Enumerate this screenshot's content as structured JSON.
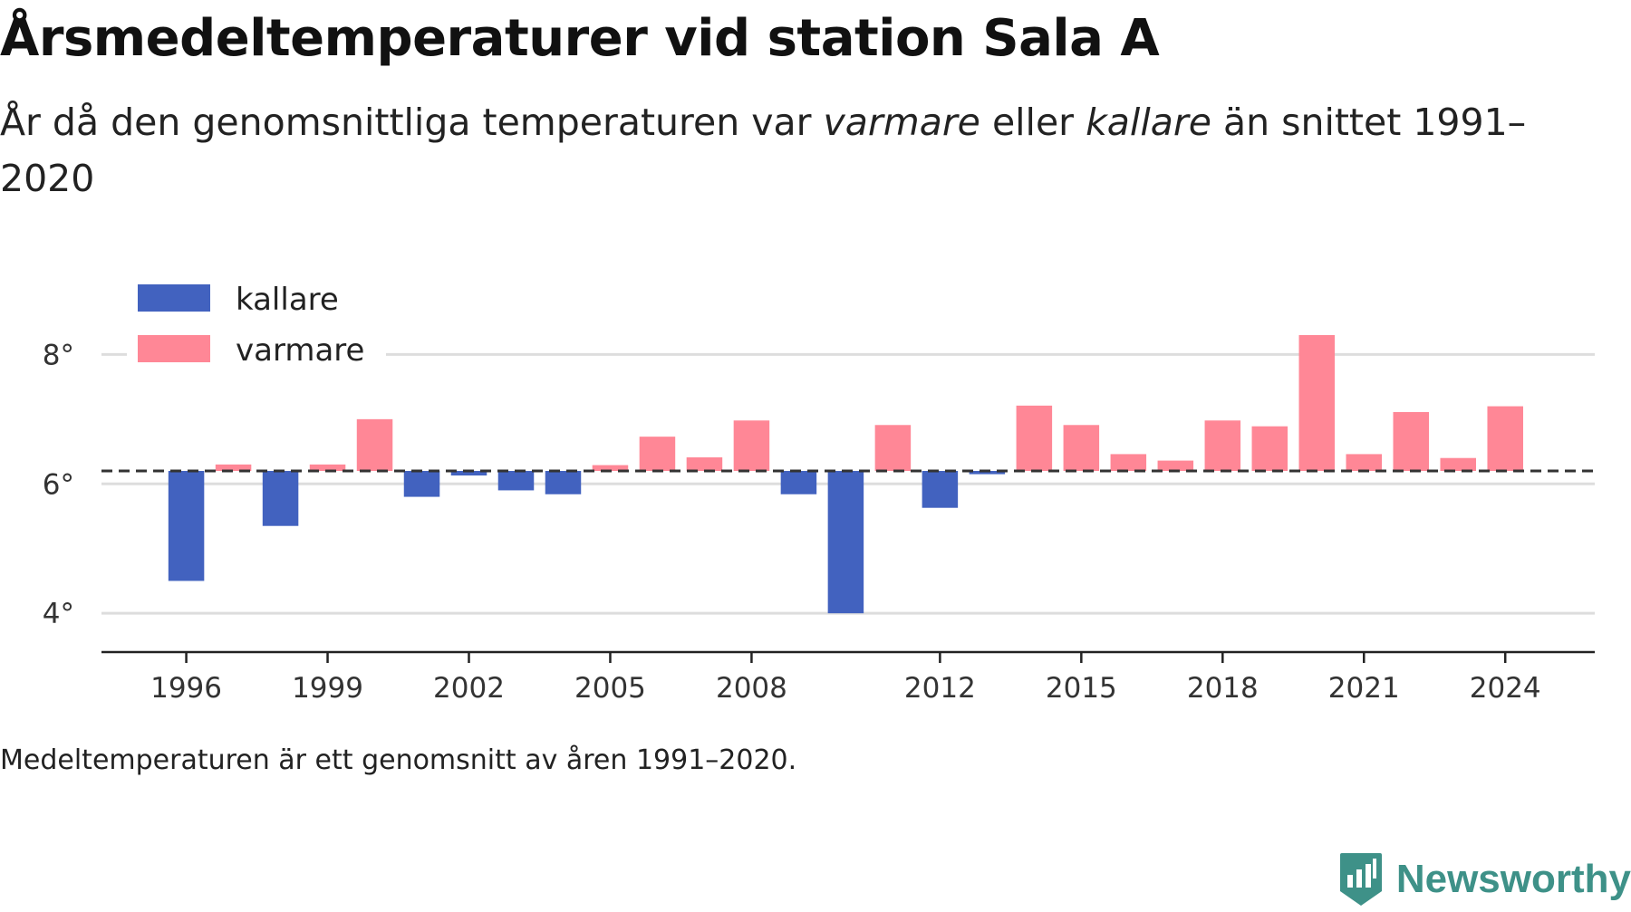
{
  "title": "Årsmedeltemperaturer vid station Sala A",
  "subtitle": {
    "part1": "År då den genomsnittliga temperaturen var ",
    "warm_word": "varmare",
    "part2": " eller ",
    "cold_word": "kallare",
    "part3": " än snittet 1991–2020"
  },
  "footnote": "Medeltemperaturen är ett genomsnitt av åren 1991–2020.",
  "brand": "Newsworthy",
  "colors": {
    "kallare": "#4262bf",
    "varmare": "#ff8796",
    "baseline": "#333333",
    "grid": "#dddddd",
    "brand": "#3e9188"
  },
  "chart_data": {
    "type": "bar",
    "baseline": 6.2,
    "ylim": [
      3.4,
      9.0
    ],
    "y_ticks": [
      4,
      6,
      8
    ],
    "y_tick_labels": [
      "4°",
      "6°",
      "8°"
    ],
    "x_ticks": [
      1996,
      1999,
      2002,
      2005,
      2008,
      2012,
      2015,
      2018,
      2021,
      2024
    ],
    "x_tick_labels": [
      "1996",
      "1999",
      "2002",
      "2005",
      "2008",
      "2012",
      "2015",
      "2018",
      "2021",
      "2024"
    ],
    "xlim": [
      1994.2,
      2025.9
    ],
    "legend": {
      "placement": "top-left",
      "entries": [
        {
          "key": "kallare",
          "label": "kallare"
        },
        {
          "key": "varmare",
          "label": "varmare"
        }
      ]
    },
    "grid": true,
    "series": [
      {
        "year": 1996,
        "value": 4.5
      },
      {
        "year": 1997,
        "value": 6.3
      },
      {
        "year": 1998,
        "value": 5.35
      },
      {
        "year": 1999,
        "value": 6.3
      },
      {
        "year": 2000,
        "value": 7.0
      },
      {
        "year": 2001,
        "value": 5.8
      },
      {
        "year": 2002,
        "value": 6.13
      },
      {
        "year": 2003,
        "value": 5.9
      },
      {
        "year": 2004,
        "value": 5.84
      },
      {
        "year": 2005,
        "value": 6.29
      },
      {
        "year": 2006,
        "value": 6.73
      },
      {
        "year": 2007,
        "value": 6.41
      },
      {
        "year": 2008,
        "value": 6.98
      },
      {
        "year": 2009,
        "value": 5.84
      },
      {
        "year": 2010,
        "value": 4.0
      },
      {
        "year": 2011,
        "value": 6.91
      },
      {
        "year": 2012,
        "value": 5.63
      },
      {
        "year": 2013,
        "value": 6.15
      },
      {
        "year": 2014,
        "value": 7.21
      },
      {
        "year": 2015,
        "value": 6.91
      },
      {
        "year": 2016,
        "value": 6.46
      },
      {
        "year": 2017,
        "value": 6.36
      },
      {
        "year": 2018,
        "value": 6.98
      },
      {
        "year": 2019,
        "value": 6.89
      },
      {
        "year": 2020,
        "value": 8.3
      },
      {
        "year": 2021,
        "value": 6.46
      },
      {
        "year": 2022,
        "value": 7.11
      },
      {
        "year": 2023,
        "value": 6.4
      },
      {
        "year": 2024,
        "value": 7.2
      }
    ]
  }
}
